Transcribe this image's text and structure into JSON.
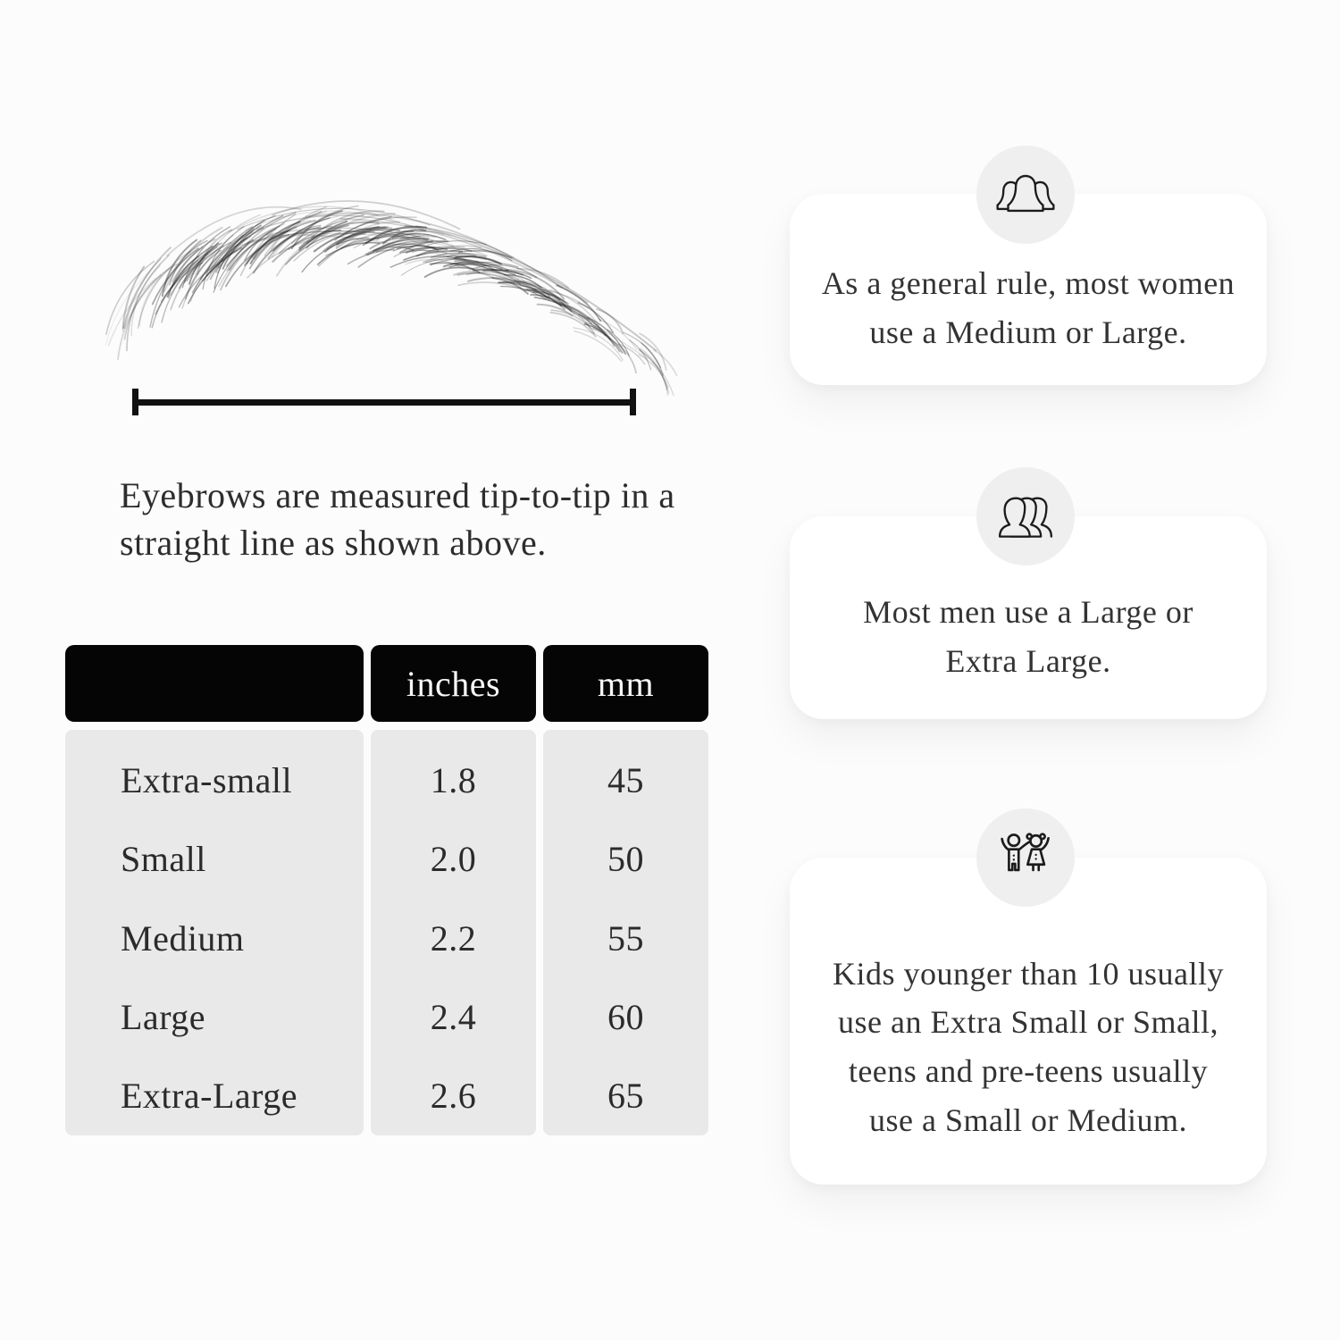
{
  "measurement": {
    "caption": "Eyebrows are measured tip-to-tip in a straight line as shown above.",
    "illustration": "eyebrow-sketch",
    "line_color": "#111111"
  },
  "size_table": {
    "columns": [
      "",
      "inches",
      "mm"
    ],
    "rows": [
      {
        "label": "Extra-small",
        "inches": "1.8",
        "mm": "45"
      },
      {
        "label": "Small",
        "inches": "2.0",
        "mm": "50"
      },
      {
        "label": "Medium",
        "inches": "2.2",
        "mm": "55"
      },
      {
        "label": "Large",
        "inches": "2.4",
        "mm": "60"
      },
      {
        "label": "Extra-Large",
        "inches": "2.6",
        "mm": "65"
      }
    ],
    "header_bg": "#050505",
    "header_text_color": "#f7f7f7",
    "body_bg": "#e9e9e9"
  },
  "info_cards": [
    {
      "icon": "women-group-icon",
      "text": "As a general rule, most women use a Medium or Large."
    },
    {
      "icon": "men-group-icon",
      "text": "Most men use a Large or Extra Large."
    },
    {
      "icon": "children-icon",
      "text": "Kids younger than 10 usually use an Extra Small or Small, teens and pre-teens usually use a Small or Medium."
    }
  ],
  "accents": {
    "page_bg": "#fcfcfc",
    "card_bg": "#ffffff",
    "icon_circle_bg": "#efefef",
    "text_color": "#2b2b2b"
  }
}
